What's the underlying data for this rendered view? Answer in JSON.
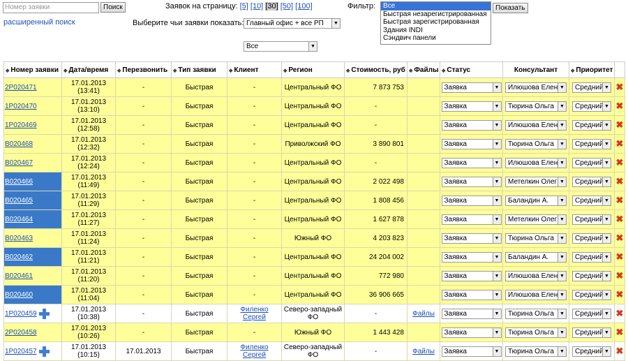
{
  "search": {
    "placeholder": "Номер заявки",
    "button": "Поиск",
    "advanced_link": "расширенный поиск"
  },
  "per_page": {
    "label": "Заявок на страницу:",
    "options": [
      "[5]",
      "[10]",
      "[30]",
      "[50]",
      "[100]"
    ],
    "current": 2
  },
  "owner": {
    "label": "Выберите чьи заявки показать:",
    "office": "Главный офис + все РП",
    "status": "Все"
  },
  "filter": {
    "label": "Фильтр:",
    "options": [
      "Все",
      "Быстрая незарегистрированная",
      "Быстрая зарегистрированная",
      "Здания INDI",
      "Сэндвич панели"
    ],
    "button": "Показать"
  },
  "table": {
    "headers": [
      "Номер заявки",
      "Дата/время",
      "Перезвонить",
      "Тип заявки",
      "Клиент",
      "Регион",
      "Стоимость, руб",
      "Файлы",
      "Статус",
      "Консультант",
      "Приоритет"
    ],
    "rows": [
      {
        "id": "2P020471",
        "date": "17.01.2013",
        "time": "(13:41)",
        "callback": "-",
        "type": "Быстрая",
        "client": "-",
        "region": "Центральный ФО",
        "cost": "7 873 753",
        "status": "Заявка",
        "consultant": "Илюшова Елена",
        "priority": "Средний",
        "row_color": "#ffff99"
      },
      {
        "id": "1P020470",
        "date": "17.01.2013",
        "time": "(13:10)",
        "callback": "-",
        "type": "Быстрая",
        "client": "-",
        "region": "Центральный ФО",
        "cost": "-",
        "status": "Заявка",
        "consultant": "Тюрина Ольга",
        "priority": "Средний",
        "row_color": "#ffff99"
      },
      {
        "id": "1P020469",
        "date": "17.01.2013",
        "time": "(12:58)",
        "callback": "-",
        "type": "Быстрая",
        "client": "-",
        "region": "Центральный ФО",
        "cost": "-",
        "status": "Заявка",
        "consultant": "Илюшова Елена",
        "priority": "Средний",
        "row_color": "#ffff99"
      },
      {
        "id": "B020468",
        "date": "17.01.2013",
        "time": "(12:32)",
        "callback": "-",
        "type": "Быстрая",
        "client": "-",
        "region": "Приволжский ФО",
        "cost": "3 890 801",
        "status": "Заявка",
        "consultant": "Тюрина Ольга",
        "priority": "Средний",
        "row_color": "#ffff99"
      },
      {
        "id": "B020467",
        "date": "17.01.2013",
        "time": "(12:24)",
        "callback": "-",
        "type": "Быстрая",
        "client": "-",
        "region": "Центральный ФО",
        "cost": "-",
        "status": "Заявка",
        "consultant": "Илюшова Елена",
        "priority": "Средний",
        "row_color": "#ffff99"
      },
      {
        "id": "B020466",
        "date": "17.01.2013",
        "time": "(11:49)",
        "callback": "-",
        "type": "Быстрая",
        "client": "-",
        "region": "Центральный ФО",
        "cost": "2 022 498",
        "status": "Заявка",
        "consultant": "Метелкин Олег",
        "priority": "Средний",
        "row_color": "#ffff99",
        "highlight": true
      },
      {
        "id": "B020465",
        "date": "17.01.2013",
        "time": "(11:29)",
        "callback": "-",
        "type": "Быстрая",
        "client": "-",
        "region": "Центральный ФО",
        "cost": "1 808 456",
        "status": "Заявка",
        "consultant": "Баландин А.",
        "priority": "Средний",
        "row_color": "#ffff99",
        "highlight": true
      },
      {
        "id": "B020464",
        "date": "17.01.2013",
        "time": "(11:27)",
        "callback": "-",
        "type": "Быстрая",
        "client": "-",
        "region": "Центральный ФО",
        "cost": "1 627 878",
        "status": "Заявка",
        "consultant": "Метелкин Олег",
        "priority": "Средний",
        "row_color": "#ffff99",
        "highlight": true
      },
      {
        "id": "B020463",
        "date": "17.01.2013",
        "time": "(11:24)",
        "callback": "-",
        "type": "Быстрая",
        "client": "-",
        "region": "Южный ФО",
        "cost": "4 203 823",
        "status": "Заявка",
        "consultant": "Тюрина Ольга",
        "priority": "Средний",
        "row_color": "#ffff99"
      },
      {
        "id": "B020462",
        "date": "17.01.2013",
        "time": "(11:21)",
        "callback": "-",
        "type": "Быстрая",
        "client": "-",
        "region": "Центральный ФО",
        "cost": "24 204 002",
        "status": "Заявка",
        "consultant": "Баландин А.",
        "priority": "Средний",
        "row_color": "#ffff99",
        "highlight": true
      },
      {
        "id": "B020461",
        "date": "17.01.2013",
        "time": "(11:20)",
        "callback": "-",
        "type": "Быстрая",
        "client": "-",
        "region": "Центральный ФО",
        "cost": "772 980",
        "status": "Заявка",
        "consultant": "Илюшова Елена",
        "priority": "Средний",
        "row_color": "#ffff99"
      },
      {
        "id": "B020460",
        "date": "17.01.2013",
        "time": "(11:04)",
        "callback": "-",
        "type": "Быстрая",
        "client": "-",
        "region": "Центральный ФО",
        "cost": "36 906 665",
        "status": "Заявка",
        "consultant": "Илюшова Елена",
        "priority": "Средний",
        "row_color": "#ffff99",
        "highlight": true
      },
      {
        "id": "1P020459",
        "date": "17.01.2013",
        "time": "(10:38)",
        "callback": "-",
        "type": "Быстрая",
        "client": "Филенко Сергей",
        "region": "Северо-западный ФО",
        "cost": "-",
        "files": "Файлы",
        "status": "Заявка",
        "consultant": "Тюрина Ольга",
        "priority": "Средний",
        "row_color": "#ffffff",
        "plus": true
      },
      {
        "id": "2P020458",
        "date": "17.01.2013",
        "time": "(10:26)",
        "callback": "-",
        "type": "Быстрая",
        "client": "-",
        "region": "Южный ФО",
        "cost": "1 443 428",
        "status": "Заявка",
        "consultant": "Тюрина Ольга",
        "priority": "Средний",
        "row_color": "#ffff99"
      },
      {
        "id": "1P020457",
        "date": "17.01.2013",
        "time": "(10:15)",
        "callback": "17.01.2013",
        "type": "Быстрая",
        "client": "Филенко Сергей",
        "region": "Северо-западный ФО",
        "cost": "-",
        "files": "Файлы",
        "status": "Заявка",
        "consultant": "Тюрина Ольга",
        "priority": "Средний",
        "row_color": "#ffffff",
        "plus": true
      }
    ]
  }
}
